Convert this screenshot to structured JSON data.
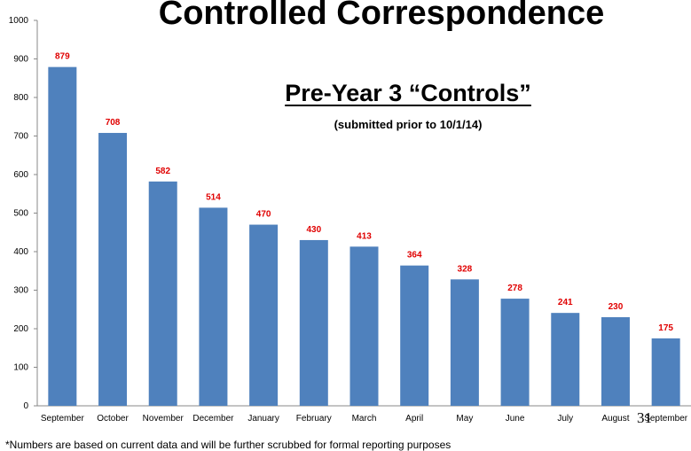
{
  "header": {
    "title": "Controlled Correspondence",
    "subtitle": "Pre-Year 3 “Controls”",
    "note": "(submitted prior to 10/1/14)"
  },
  "footer": {
    "footnote": "*Numbers are based on current data and will be further scrubbed for formal reporting purposes",
    "page_number": "31"
  },
  "colors": {
    "bar": "#4F81BD",
    "data_label": "#E00000",
    "axis": "#888888"
  },
  "chart_data": {
    "type": "bar",
    "categories": [
      "September",
      "October",
      "November",
      "December",
      "January",
      "February",
      "March",
      "April",
      "May",
      "June",
      "July",
      "August",
      "September"
    ],
    "values": [
      879,
      708,
      582,
      514,
      470,
      430,
      413,
      364,
      328,
      278,
      241,
      230,
      175
    ],
    "ylim": [
      0,
      1000
    ],
    "yticks": [
      0,
      100,
      200,
      300,
      400,
      500,
      600,
      700,
      800,
      900,
      1000
    ],
    "grid": false,
    "legend": "none"
  }
}
